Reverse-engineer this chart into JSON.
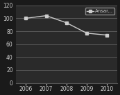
{
  "x": [
    2006,
    2007,
    2008,
    2009,
    2010
  ],
  "y": [
    100,
    104,
    93,
    77,
    74
  ],
  "line_color": "#cccccc",
  "marker": "s",
  "marker_color": "#cccccc",
  "marker_size": 2.5,
  "legend_label": "Ansar...",
  "ylim": [
    0,
    120
  ],
  "yticks": [
    0,
    20,
    40,
    60,
    80,
    100,
    120
  ],
  "xlim": [
    2005.5,
    2010.5
  ],
  "xticks": [
    2006,
    2007,
    2008,
    2009,
    2010
  ],
  "tick_fontsize": 5.5,
  "legend_fontsize": 5,
  "plot_bg_color": "#2a2a2a",
  "fig_bg_color": "#1a1a1a",
  "grid_color": "#ffffff",
  "tick_color": "#cccccc",
  "line_width": 1.0,
  "legend_bg": "#2a2a2a",
  "legend_edge": "#888888"
}
